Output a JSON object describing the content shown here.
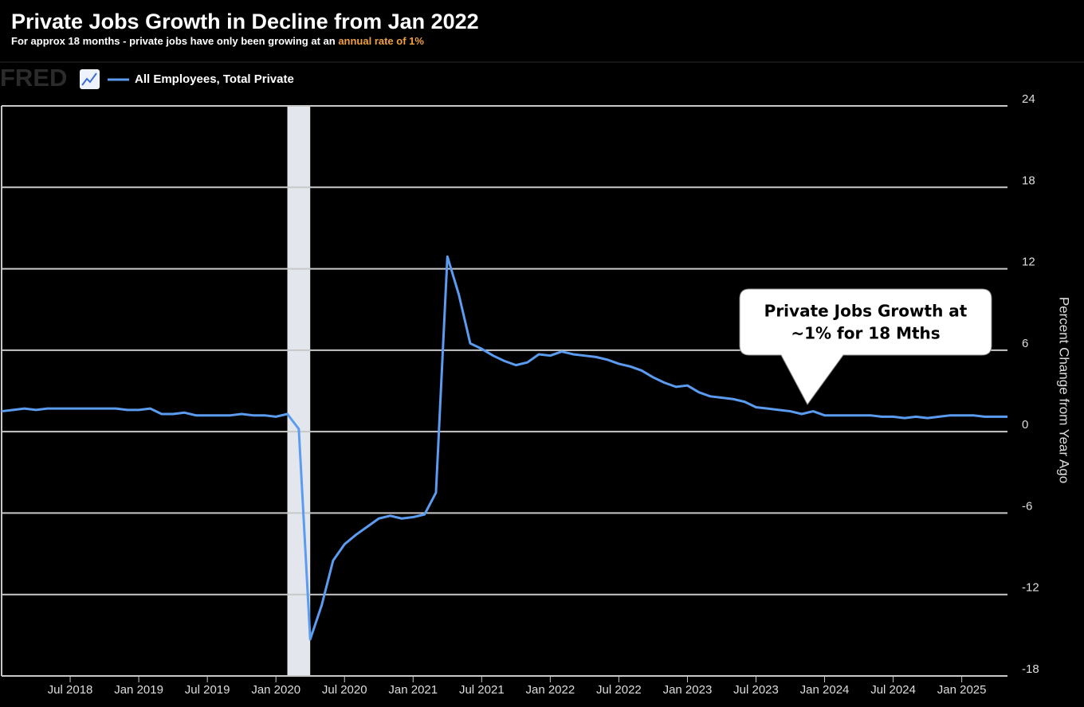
{
  "chart_data": {
    "type": "line",
    "title": "Private Jobs Growth in Decline from Jan 2022",
    "subtitle": {
      "text": "For approx 18 months - private jobs have only been growing at an",
      "highlight": "annual rate of 1%"
    },
    "source_logo": "FRED",
    "y_label": "Percent Change from Year Ago",
    "annotation": [
      "Private Jobs Growth at",
      "~1% for 18 Mths"
    ],
    "recessions": [
      {
        "start": "2020-02",
        "end": "2020-04"
      }
    ],
    "x": [
      "2018-01",
      "2018-02",
      "2018-03",
      "2018-04",
      "2018-05",
      "2018-06",
      "2018-07",
      "2018-08",
      "2018-09",
      "2018-10",
      "2018-11",
      "2018-12",
      "2019-01",
      "2019-02",
      "2019-03",
      "2019-04",
      "2019-05",
      "2019-06",
      "2019-07",
      "2019-08",
      "2019-09",
      "2019-10",
      "2019-11",
      "2019-12",
      "2020-01",
      "2020-02",
      "2020-03",
      "2020-04",
      "2020-05",
      "2020-06",
      "2020-07",
      "2020-08",
      "2020-09",
      "2020-10",
      "2020-11",
      "2020-12",
      "2021-01",
      "2021-02",
      "2021-03",
      "2021-04",
      "2021-05",
      "2021-06",
      "2021-07",
      "2021-08",
      "2021-09",
      "2021-10",
      "2021-11",
      "2021-12",
      "2022-01",
      "2022-02",
      "2022-03",
      "2022-04",
      "2022-05",
      "2022-06",
      "2022-07",
      "2022-08",
      "2022-09",
      "2022-10",
      "2022-11",
      "2022-12",
      "2023-01",
      "2023-02",
      "2023-03",
      "2023-04",
      "2023-05",
      "2023-06",
      "2023-07",
      "2023-08",
      "2023-09",
      "2023-10",
      "2023-11",
      "2023-12",
      "2024-01",
      "2024-02",
      "2024-03",
      "2024-04",
      "2024-05",
      "2024-06",
      "2024-07",
      "2024-08",
      "2024-09",
      "2024-10",
      "2024-11",
      "2024-12",
      "2025-01",
      "2025-02",
      "2025-03",
      "2025-04",
      "2025-05"
    ],
    "series": [
      {
        "name": "All Employees, Total Private",
        "color": "#5b9bf0",
        "values": [
          1.5,
          1.6,
          1.7,
          1.6,
          1.7,
          1.7,
          1.7,
          1.7,
          1.7,
          1.7,
          1.7,
          1.6,
          1.6,
          1.7,
          1.3,
          1.3,
          1.4,
          1.2,
          1.2,
          1.2,
          1.2,
          1.3,
          1.2,
          1.2,
          1.1,
          1.3,
          0.2,
          -15.3,
          -12.8,
          -9.5,
          -8.3,
          -7.6,
          -7.0,
          -6.4,
          -6.2,
          -6.4,
          -6.3,
          -6.1,
          -4.5,
          12.9,
          10.1,
          6.5,
          6.1,
          5.6,
          5.2,
          4.9,
          5.1,
          5.7,
          5.6,
          5.9,
          5.7,
          5.6,
          5.5,
          5.3,
          5.0,
          4.8,
          4.5,
          4.0,
          3.6,
          3.3,
          3.4,
          2.9,
          2.6,
          2.5,
          2.4,
          2.2,
          1.8,
          1.7,
          1.6,
          1.5,
          1.3,
          1.5,
          1.2,
          1.2,
          1.2,
          1.2,
          1.2,
          1.1,
          1.1,
          1.0,
          1.1,
          1.0,
          1.1,
          1.2,
          1.2,
          1.2,
          1.1,
          1.1,
          1.1
        ]
      }
    ],
    "xlim": [
      "2018-01",
      "2025-05"
    ],
    "xticks": [
      {
        "value": "2018-07",
        "label": "Jul 2018"
      },
      {
        "value": "2019-01",
        "label": "Jan 2019"
      },
      {
        "value": "2019-07",
        "label": "Jul 2019"
      },
      {
        "value": "2020-01",
        "label": "Jan 2020"
      },
      {
        "value": "2020-07",
        "label": "Jul 2020"
      },
      {
        "value": "2021-01",
        "label": "Jan 2021"
      },
      {
        "value": "2021-07",
        "label": "Jul 2021"
      },
      {
        "value": "2022-01",
        "label": "Jan 2022"
      },
      {
        "value": "2022-07",
        "label": "Jul 2022"
      },
      {
        "value": "2023-01",
        "label": "Jan 2023"
      },
      {
        "value": "2023-07",
        "label": "Jul 2023"
      },
      {
        "value": "2024-01",
        "label": "Jan 2024"
      },
      {
        "value": "2024-07",
        "label": "Jul 2024"
      },
      {
        "value": "2025-01",
        "label": "Jan 2025"
      }
    ],
    "ylim": [
      -18,
      24
    ],
    "yticks": [
      -18,
      -12,
      -6,
      0,
      6,
      12,
      18,
      24
    ],
    "grid": true
  }
}
